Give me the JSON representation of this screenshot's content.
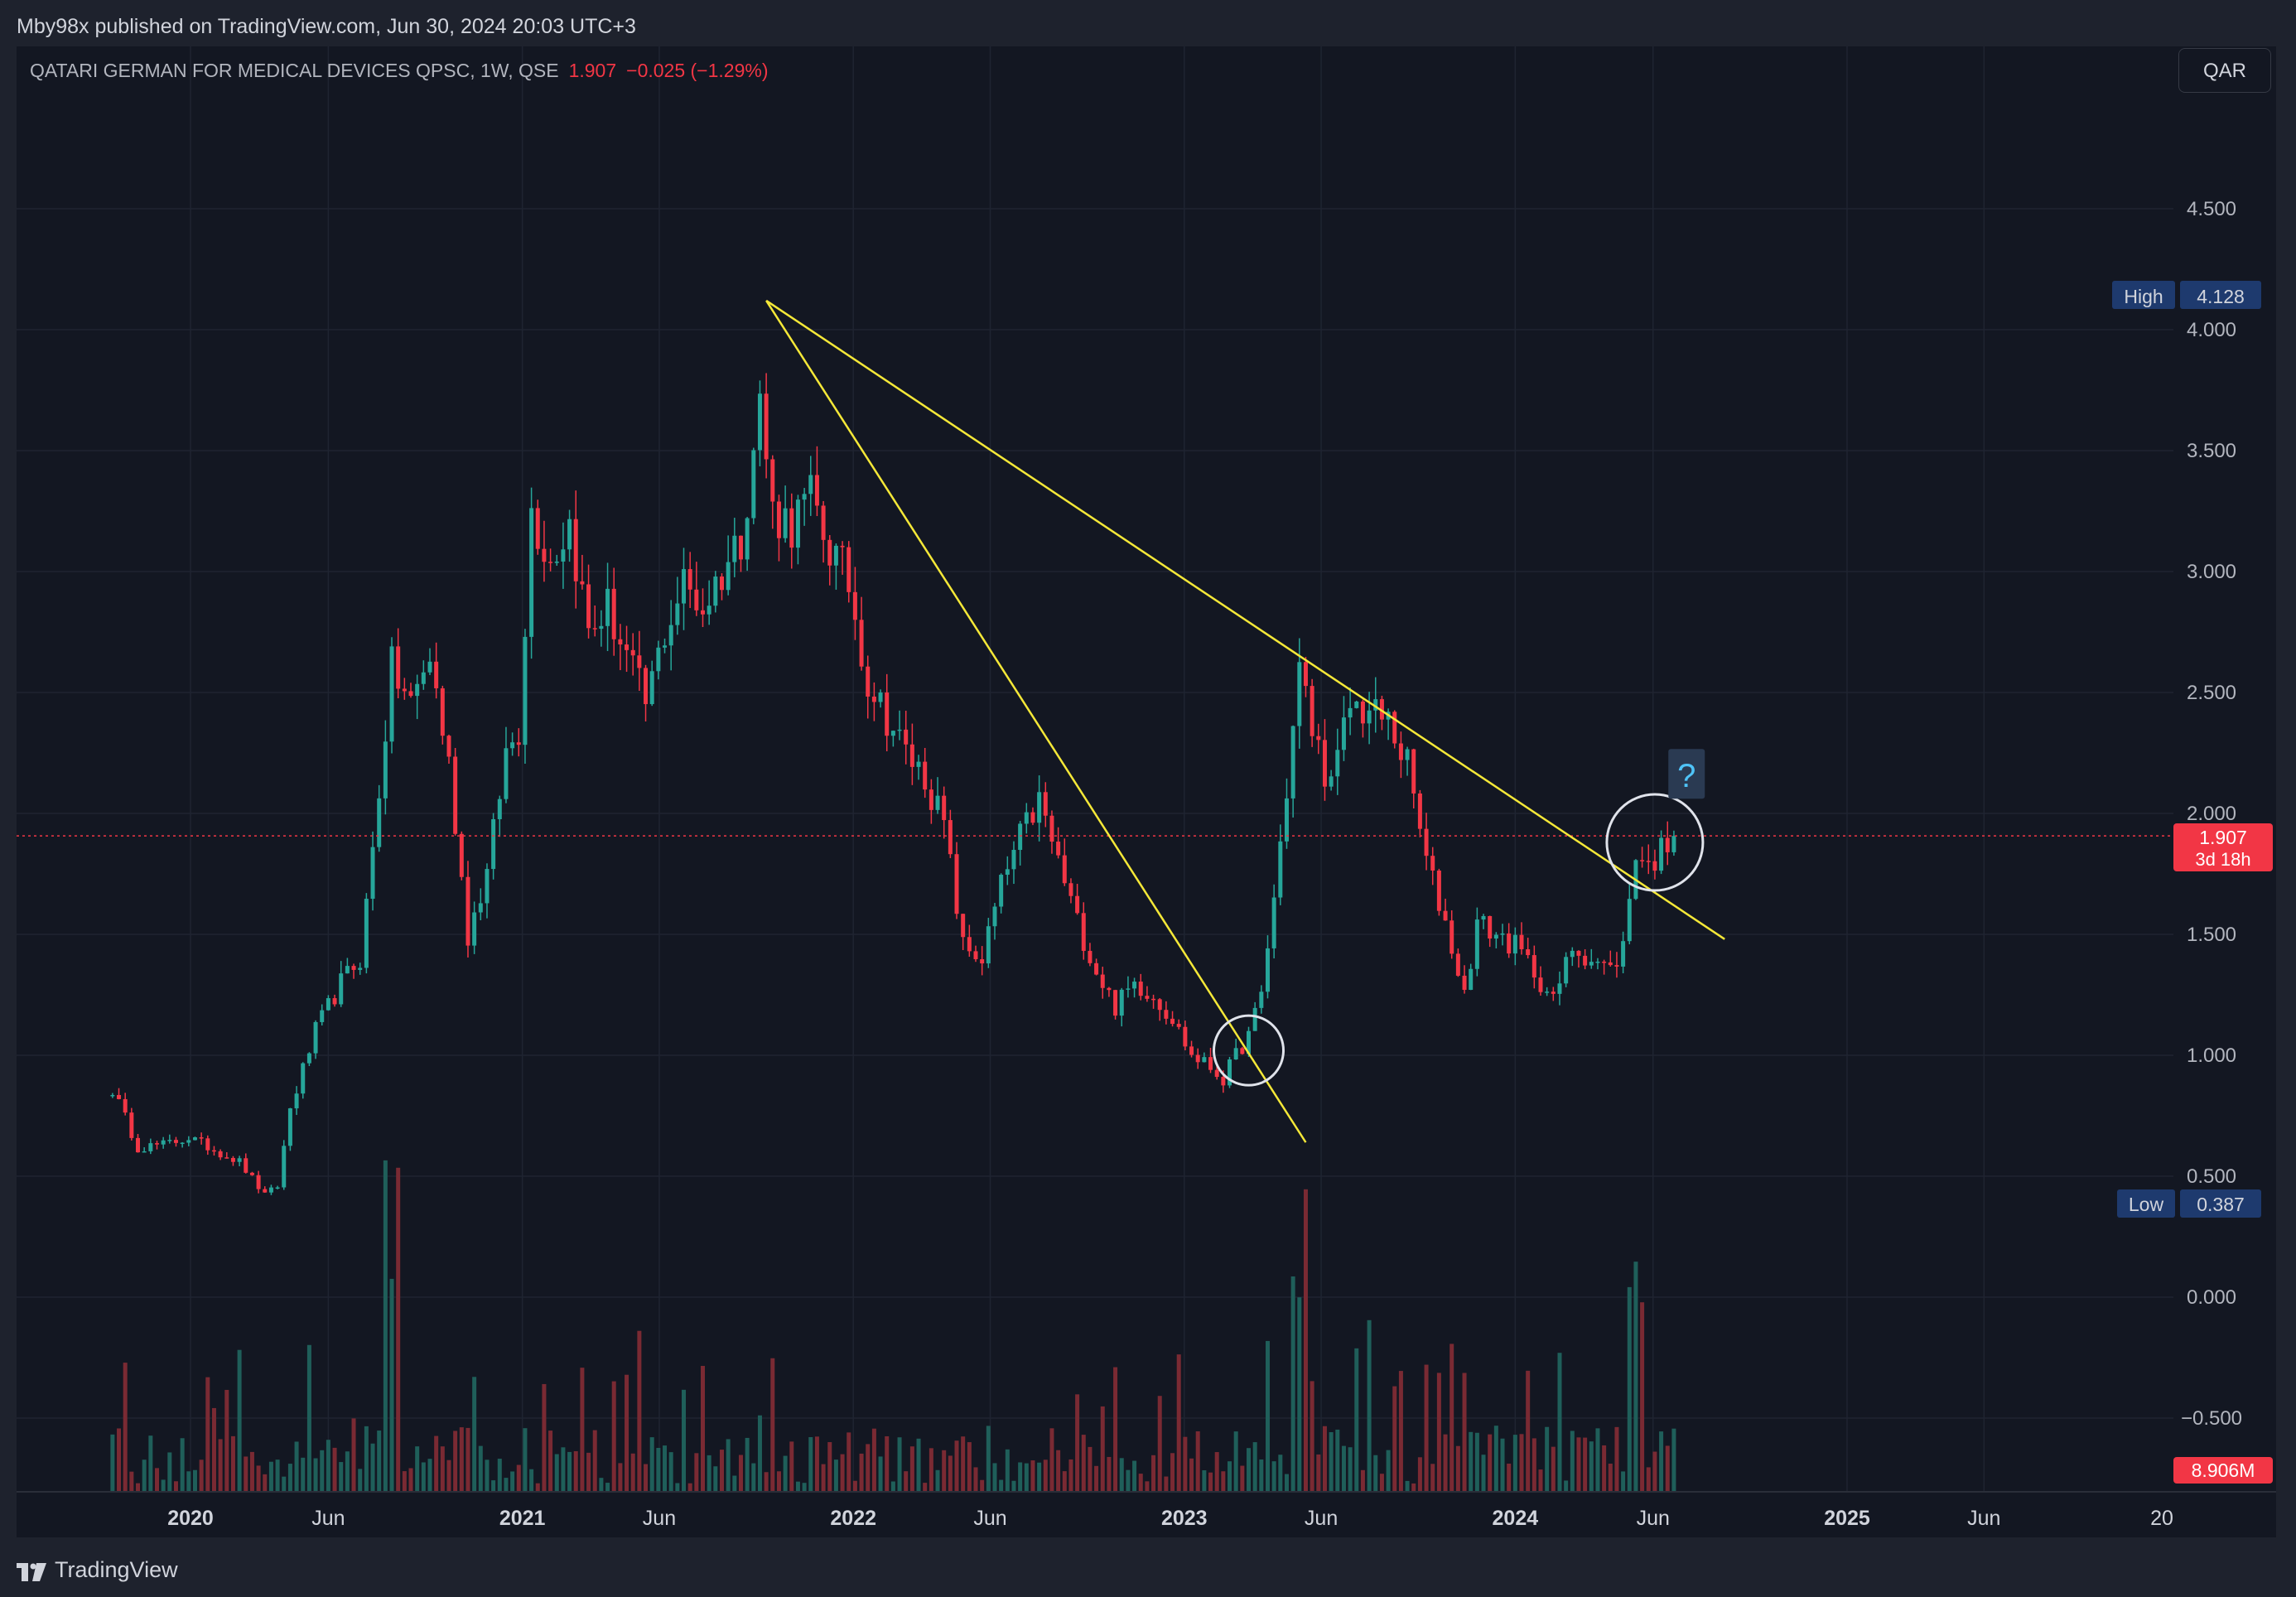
{
  "header": {
    "publisher": "Mby98x published on TradingView.com, Jun 30, 2024 20:03 UTC+3"
  },
  "legend": {
    "symbol": "QATARI GERMAN FOR MEDICAL DEVICES QPSC, 1W, QSE",
    "price": "1.907",
    "change": "−0.025 (−1.29%)"
  },
  "currency_button": "QAR",
  "footer": {
    "brand": "TradingView"
  },
  "annotation": {
    "question_mark": "?"
  },
  "price_axis": {
    "ticks": [
      "4.500",
      "4.000",
      "3.500",
      "3.000",
      "2.500",
      "2.000",
      "1.500",
      "1.000",
      "0.500",
      "0.000",
      "−0.500"
    ],
    "high_label": "High",
    "high_value": "4.128",
    "low_label": "Low",
    "low_value": "0.387",
    "last_price": "1.907",
    "countdown": "3d 18h",
    "volume_badge": "8.906M"
  },
  "time_axis": {
    "labels": [
      "2020",
      "Jun",
      "2021",
      "Jun",
      "2022",
      "Jun",
      "2023",
      "Jun",
      "2024",
      "Jun",
      "2025",
      "Jun",
      "20"
    ]
  },
  "colors": {
    "up": "#26a69a",
    "down": "#f23645",
    "trendline": "#f5e838",
    "badge_blue": "#1e3a6e",
    "background": "#131722"
  },
  "chart_data": {
    "type": "candlestick",
    "timeframe": "1W",
    "ylim": [
      -0.8,
      5.1
    ],
    "price_points": [
      [
        "2019-10-07",
        0.86
      ],
      [
        "2019-11-04",
        0.62
      ],
      [
        "2019-12-02",
        0.63
      ],
      [
        "2019-12-30",
        0.66
      ],
      [
        "2020-01-27",
        0.61
      ],
      [
        "2020-02-24",
        0.56
      ],
      [
        "2020-03-23",
        0.42
      ],
      [
        "2020-04-06",
        0.46
      ],
      [
        "2020-04-20",
        0.78
      ],
      [
        "2020-05-18",
        1.1
      ],
      [
        "2020-06-15",
        1.3
      ],
      [
        "2020-07-06",
        1.4
      ],
      [
        "2020-07-20",
        1.85
      ],
      [
        "2020-08-10",
        2.6
      ],
      [
        "2020-08-31",
        2.45
      ],
      [
        "2020-09-21",
        2.65
      ],
      [
        "2020-10-12",
        2.2
      ],
      [
        "2020-11-02",
        1.5
      ],
      [
        "2020-11-23",
        1.75
      ],
      [
        "2020-12-14",
        2.25
      ],
      [
        "2020-12-28",
        2.35
      ],
      [
        "2021-01-11",
        3.25
      ],
      [
        "2021-02-01",
        3.05
      ],
      [
        "2021-02-22",
        3.2
      ],
      [
        "2021-03-15",
        2.75
      ],
      [
        "2021-04-05",
        2.85
      ],
      [
        "2021-04-26",
        2.65
      ],
      [
        "2021-05-17",
        2.45
      ],
      [
        "2021-06-07",
        2.75
      ],
      [
        "2021-06-28",
        2.95
      ],
      [
        "2021-07-19",
        2.85
      ],
      [
        "2021-08-09",
        3.0
      ],
      [
        "2021-08-30",
        3.15
      ],
      [
        "2021-09-20",
        3.7
      ],
      [
        "2021-10-04",
        3.25
      ],
      [
        "2021-10-25",
        3.2
      ],
      [
        "2021-11-15",
        3.3
      ],
      [
        "2021-12-06",
        3.1
      ],
      [
        "2021-12-27",
        2.95
      ],
      [
        "2022-01-17",
        2.55
      ],
      [
        "2022-02-07",
        2.4
      ],
      [
        "2022-02-28",
        2.25
      ],
      [
        "2022-03-21",
        2.15
      ],
      [
        "2022-04-11",
        1.95
      ],
      [
        "2022-05-02",
        1.45
      ],
      [
        "2022-05-23",
        1.4
      ],
      [
        "2022-06-13",
        1.7
      ],
      [
        "2022-07-04",
        1.9
      ],
      [
        "2022-07-25",
        2.05
      ],
      [
        "2022-08-15",
        1.8
      ],
      [
        "2022-09-05",
        1.55
      ],
      [
        "2022-09-26",
        1.35
      ],
      [
        "2022-10-17",
        1.2
      ],
      [
        "2022-11-07",
        1.3
      ],
      [
        "2022-11-28",
        1.25
      ],
      [
        "2022-12-19",
        1.15
      ],
      [
        "2023-01-09",
        1.0
      ],
      [
        "2023-01-30",
        0.95
      ],
      [
        "2023-02-13",
        0.9
      ],
      [
        "2023-02-27",
        1.0
      ],
      [
        "2023-03-13",
        1.08
      ],
      [
        "2023-03-27",
        1.25
      ],
      [
        "2023-04-10",
        1.65
      ],
      [
        "2023-04-24",
        2.1
      ],
      [
        "2023-05-08",
        2.6
      ],
      [
        "2023-05-22",
        2.35
      ],
      [
        "2023-06-12",
        2.1
      ],
      [
        "2023-07-03",
        2.45
      ],
      [
        "2023-07-24",
        2.42
      ],
      [
        "2023-08-14",
        2.38
      ],
      [
        "2023-09-04",
        2.2
      ],
      [
        "2023-09-25",
        1.8
      ],
      [
        "2023-10-16",
        1.55
      ],
      [
        "2023-11-06",
        1.25
      ],
      [
        "2023-11-20",
        1.55
      ],
      [
        "2023-12-11",
        1.5
      ],
      [
        "2024-01-01",
        1.45
      ],
      [
        "2024-01-22",
        1.35
      ],
      [
        "2024-02-12",
        1.22
      ],
      [
        "2024-03-04",
        1.45
      ],
      [
        "2024-03-25",
        1.4
      ],
      [
        "2024-04-15",
        1.35
      ],
      [
        "2024-04-29",
        1.45
      ],
      [
        "2024-05-13",
        1.85
      ],
      [
        "2024-05-27",
        1.78
      ],
      [
        "2024-06-10",
        1.85
      ],
      [
        "2024-06-24",
        1.907
      ]
    ],
    "high": 4.128,
    "low": 0.387,
    "last_price": 1.907,
    "trendlines": [
      {
        "from": [
          "2021-09-27",
          4.12
        ],
        "to": [
          "2023-05-15",
          0.64
        ]
      },
      {
        "from": [
          "2021-09-27",
          4.12
        ],
        "to": [
          "2024-08-19",
          1.48
        ]
      }
    ],
    "circles": [
      {
        "center": [
          "2023-03-13",
          1.02
        ]
      },
      {
        "center": [
          "2024-06-03",
          1.88
        ]
      }
    ],
    "volume": {
      "last": "8.906M",
      "spikes": [
        "2020-08-10",
        "2023-05-08",
        "2024-05-13"
      ]
    },
    "grid": true
  }
}
